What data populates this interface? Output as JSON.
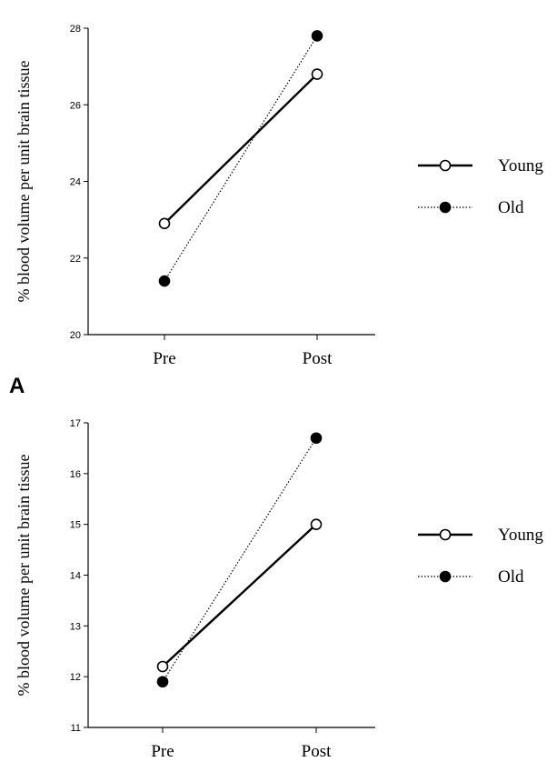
{
  "panel_letter": "A",
  "chart_data": [
    {
      "type": "line",
      "categories": [
        "Pre",
        "Post"
      ],
      "ylabel": "% blood volume per unit brain tissue",
      "ylim": [
        20,
        28
      ],
      "yticks": [
        20,
        22,
        24,
        26,
        28
      ],
      "series": [
        {
          "name": "Young",
          "values": [
            22.9,
            26.8
          ],
          "marker": "open-circle",
          "line": "solid",
          "color": "#000000"
        },
        {
          "name": "Old",
          "values": [
            21.4,
            27.8
          ],
          "marker": "filled-circle",
          "line": "dotted",
          "color": "#000000"
        }
      ],
      "legend": "right"
    },
    {
      "type": "line",
      "categories": [
        "Pre",
        "Post"
      ],
      "ylabel": "% blood volume per unit brain tissue",
      "ylim": [
        11,
        17
      ],
      "yticks": [
        11,
        12,
        13,
        14,
        15,
        16,
        17
      ],
      "series": [
        {
          "name": "Young",
          "values": [
            12.2,
            15.0
          ],
          "marker": "open-circle",
          "line": "solid",
          "color": "#000000"
        },
        {
          "name": "Old",
          "values": [
            11.9,
            16.7
          ],
          "marker": "filled-circle",
          "line": "dotted",
          "color": "#000000"
        }
      ],
      "legend": "right"
    }
  ]
}
